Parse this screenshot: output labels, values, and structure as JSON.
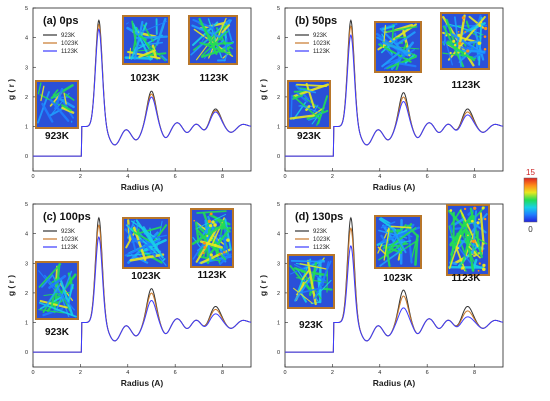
{
  "colorbar": {
    "max_label": "15",
    "min_label": "0",
    "colors": [
      "#2222dd",
      "#1f7fff",
      "#18d0e8",
      "#22dd55",
      "#e8e81f",
      "#ff8c1a",
      "#dd2222"
    ]
  },
  "legend": [
    "923K",
    "1023K",
    "1123K"
  ],
  "series_colors": [
    "#333333",
    "#c8782a",
    "#3a3aff"
  ],
  "chart_data": [
    {
      "type": "line",
      "title": "(a) 0ps",
      "xlabel": "Radius (A)",
      "ylabel": "g ( r )",
      "xlim": [
        0,
        9.2
      ],
      "ylim": [
        -0.5,
        5
      ],
      "x_ticks": [
        0,
        2,
        4,
        6,
        8
      ],
      "y_ticks": [
        0,
        1,
        2,
        3,
        4,
        5
      ],
      "peak_heights": {
        "923K": [
          4.5,
          2.2,
          1.6
        ],
        "1023K": [
          4.35,
          2.1,
          1.55
        ],
        "1123K": [
          4.2,
          2.0,
          1.5
        ]
      },
      "insets": [
        "923K",
        "1023K",
        "1123K"
      ],
      "legend_placement": "top-left"
    },
    {
      "type": "line",
      "title": "(b) 50ps",
      "xlabel": "Radius (A)",
      "ylabel": "g ( r )",
      "xlim": [
        0,
        9.2
      ],
      "ylim": [
        -0.5,
        5
      ],
      "x_ticks": [
        0,
        2,
        4,
        6,
        8
      ],
      "y_ticks": [
        0,
        1,
        2,
        3,
        4,
        5
      ],
      "peak_heights": {
        "923K": [
          4.5,
          2.15,
          1.6
        ],
        "1023K": [
          4.3,
          2.0,
          1.5
        ],
        "1123K": [
          4.0,
          1.85,
          1.4
        ]
      },
      "insets": [
        "923K",
        "1023K",
        "1123K"
      ],
      "legend_placement": "top-left"
    },
    {
      "type": "line",
      "title": "(c) 100ps",
      "xlabel": "Radius (A)",
      "ylabel": "g ( r )",
      "xlim": [
        0,
        9.2
      ],
      "ylim": [
        -0.5,
        5
      ],
      "x_ticks": [
        0,
        2,
        4,
        6,
        8
      ],
      "y_ticks": [
        0,
        1,
        2,
        3,
        4,
        5
      ],
      "peak_heights": {
        "923K": [
          4.45,
          2.15,
          1.55
        ],
        "1023K": [
          4.2,
          2.0,
          1.45
        ],
        "1123K": [
          3.8,
          1.75,
          1.3
        ]
      },
      "insets": [
        "923K",
        "1023K",
        "1123K"
      ],
      "legend_placement": "top-left"
    },
    {
      "type": "line",
      "title": "(d) 130ps",
      "xlabel": "Radius (A)",
      "ylabel": "g ( r )",
      "xlim": [
        0,
        9.2
      ],
      "ylim": [
        -0.5,
        5
      ],
      "x_ticks": [
        0,
        2,
        4,
        6,
        8
      ],
      "y_ticks": [
        0,
        1,
        2,
        3,
        4,
        5
      ],
      "peak_heights": {
        "923K": [
          4.45,
          2.1,
          1.55
        ],
        "1023K": [
          4.1,
          1.9,
          1.4
        ],
        "1123K": [
          3.5,
          1.5,
          1.2
        ]
      },
      "insets": [
        "923K",
        "1023K",
        "1123K"
      ],
      "legend_placement": "top-left"
    }
  ]
}
